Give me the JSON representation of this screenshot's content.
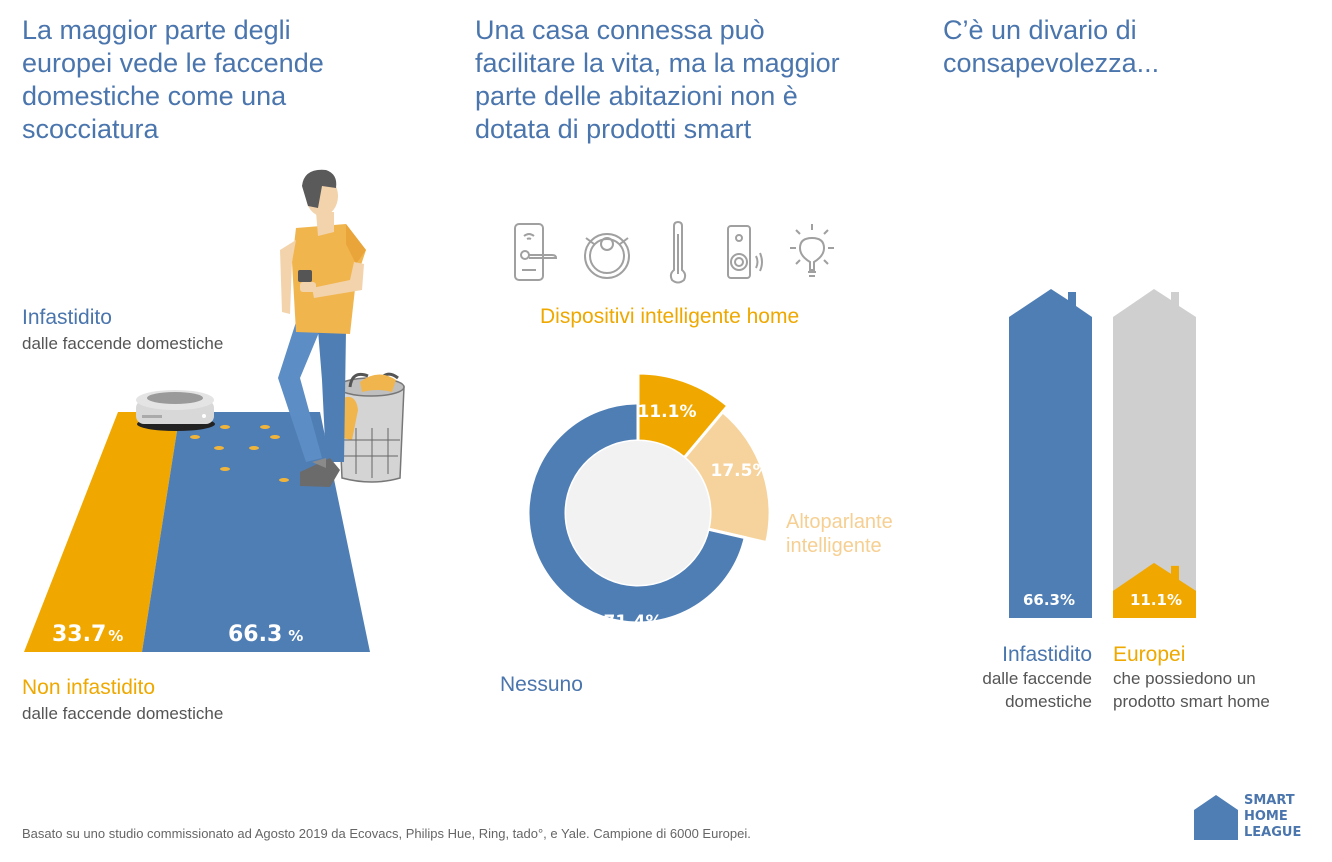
{
  "colors": {
    "blue": "#4f7eb5",
    "orange": "#f0a800",
    "light_orange": "#f6d39c",
    "gray": "#cfcfcf",
    "text_blue": "#4a75ad"
  },
  "section1": {
    "headline": [
      "La maggior parte degli",
      "europei vede le faccende",
      "domestiche come una",
      "scocciatura"
    ],
    "annoyed_label": "Infastidito",
    "annoyed_sub": "dalle faccende domestiche",
    "not_annoyed_label": "Non infastidito",
    "not_annoyed_sub": "dalle faccende domestiche",
    "not_annoyed_value": "33.7",
    "annoyed_value": "66.3",
    "pct_sign": "%"
  },
  "section2": {
    "headline": [
      "Una casa connessa può",
      "facilitare la vita, ma la maggior",
      "parte delle abitazioni non è",
      "dotata di prodotti smart"
    ],
    "icons": [
      "smart-lock-icon",
      "robot-vacuum-icon",
      "thermostat-icon",
      "video-doorbell-icon",
      "smart-bulb-icon"
    ],
    "devices_label": "Dispositivi intelligente home",
    "speaker_label": [
      "Altoparlante",
      "intelligente"
    ],
    "none_label": "Nessuno"
  },
  "section3": {
    "headline": [
      "C’è un divario di",
      "consapevolezza..."
    ],
    "left_label": "Infastidito",
    "left_sub": [
      "dalle faccende",
      "domestiche"
    ],
    "right_label": "Europei",
    "right_sub": [
      "che possiedono un",
      "prodotto smart home"
    ]
  },
  "footer": {
    "note": "Basato su uno studio commissionato ad Agosto 2019 da Ecovacs, Philips Hue, Ring, tado°, e Yale. Campione di 6000 Europei.",
    "logo": [
      "SMART",
      "HOME",
      "LEAGUE"
    ]
  },
  "chart_data": [
    {
      "type": "bar",
      "title": "La maggior parte degli europei vede le faccende domestiche come una scocciatura",
      "categories": [
        "Non infastidito",
        "Infastidito"
      ],
      "values": [
        33.7,
        66.3
      ],
      "unit": "%",
      "labels": [
        "33.7%",
        "66.3 %"
      ]
    },
    {
      "type": "pie",
      "title": "Una casa connessa può facilitare la vita, ma la maggior parte delle abitazioni non è dotata di prodotti smart",
      "categories": [
        "Dispositivi intelligente home",
        "Altoparlante intelligente",
        "Nessuno"
      ],
      "values": [
        11.1,
        17.5,
        71.4
      ],
      "unit": "%",
      "labels": [
        "11.1%",
        "17.5%",
        "71.4%"
      ],
      "donut": true
    },
    {
      "type": "bar",
      "title": "C’è un divario di consapevolezza...",
      "categories": [
        "Infastidito dalle faccende domestiche",
        "Europei che possiedono un prodotto smart home"
      ],
      "values": [
        66.3,
        11.1
      ],
      "unit": "%",
      "labels": [
        "66.3%",
        "11.1%"
      ]
    }
  ]
}
